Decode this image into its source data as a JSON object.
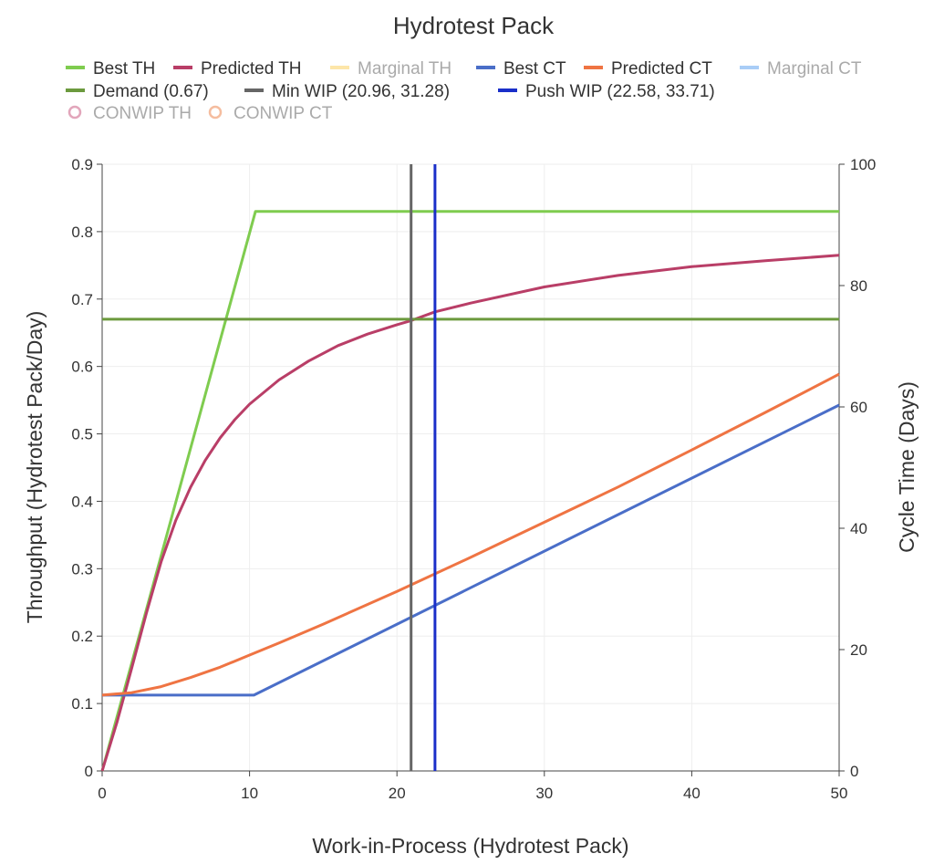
{
  "chart_data": {
    "type": "line",
    "title": "Hydrotest Pack",
    "xlabel": "Work-in-Process (Hydrotest Pack)",
    "ylabel_left": "Throughput (Hydrotest Pack/Day)",
    "ylabel_right": "Cycle Time (Days)",
    "xlim": [
      0,
      50
    ],
    "ylim_left": [
      0,
      0.9
    ],
    "ylim_right": [
      0,
      100
    ],
    "x_ticks": [
      "0",
      "10",
      "20",
      "30",
      "40",
      "50"
    ],
    "y_left_ticks": [
      "0",
      "0.1",
      "0.2",
      "0.3",
      "0.4",
      "0.5",
      "0.6",
      "0.7",
      "0.8",
      "0.9"
    ],
    "y_right_ticks": [
      "0",
      "20",
      "40",
      "60",
      "80",
      "100"
    ],
    "grid": true,
    "legend_position": "top",
    "legend": [
      {
        "label": "Best TH",
        "color": "#7fcc4f",
        "marker": "line",
        "enabled": true
      },
      {
        "label": "Predicted TH",
        "color": "#b93e67",
        "marker": "line",
        "enabled": true
      },
      {
        "label": "Marginal TH",
        "color": "#fde6a9",
        "marker": "line",
        "enabled": false
      },
      {
        "label": "Best CT",
        "color": "#4a6ec8",
        "marker": "line",
        "enabled": true
      },
      {
        "label": "Predicted CT",
        "color": "#ef7443",
        "marker": "line",
        "enabled": true
      },
      {
        "label": "Marginal CT",
        "color": "#a9cdf7",
        "marker": "line",
        "enabled": false
      },
      {
        "label": "Demand (0.67)",
        "color": "#6c9a3e",
        "marker": "line",
        "enabled": true
      },
      {
        "label": "Min WIP (20.96, 31.28)",
        "color": "#666666",
        "marker": "line",
        "enabled": true
      },
      {
        "label": "Push WIP (22.58, 33.71)",
        "color": "#1a2fc9",
        "marker": "line",
        "enabled": true
      },
      {
        "label": "CONWIP TH",
        "color": "#e2a6bb",
        "marker": "circle",
        "enabled": false
      },
      {
        "label": "CONWIP CT",
        "color": "#f5bd9f",
        "marker": "circle",
        "enabled": false
      }
    ],
    "series": [
      {
        "name": "Best TH",
        "axis": "left",
        "color": "#7fcc4f",
        "x": [
          0,
          10.4,
          50
        ],
        "y": [
          0,
          0.83,
          0.83
        ]
      },
      {
        "name": "Predicted TH",
        "axis": "left",
        "color": "#b93e67",
        "x": [
          0,
          1,
          2,
          3,
          4,
          5,
          6,
          7,
          8,
          9,
          10,
          12,
          14,
          16,
          18,
          20,
          20.96,
          22.58,
          25,
          30,
          35,
          40,
          45,
          50
        ],
        "y": [
          0,
          0.072,
          0.152,
          0.234,
          0.31,
          0.372,
          0.421,
          0.461,
          0.494,
          0.521,
          0.544,
          0.58,
          0.608,
          0.631,
          0.648,
          0.662,
          0.668,
          0.681,
          0.694,
          0.718,
          0.735,
          0.748,
          0.757,
          0.765
        ]
      },
      {
        "name": "Best CT",
        "axis": "right",
        "color": "#4a6ec8",
        "x": [
          0,
          10.3,
          50
        ],
        "y": [
          12.5,
          12.5,
          60.3
        ]
      },
      {
        "name": "Predicted CT",
        "axis": "right",
        "color": "#ef7443",
        "x": [
          0,
          2,
          4,
          6,
          8,
          10,
          12,
          15,
          20,
          25,
          30,
          35,
          40,
          45,
          50
        ],
        "y": [
          12.5,
          12.9,
          13.9,
          15.4,
          17.1,
          19.1,
          21.1,
          24.2,
          29.6,
          35.2,
          41.0,
          46.8,
          52.9,
          59.1,
          65.4
        ]
      },
      {
        "name": "Demand (0.67)",
        "axis": "left",
        "color": "#6c9a3e",
        "x": [
          0,
          50
        ],
        "y": [
          0.67,
          0.67
        ]
      },
      {
        "name": "Min WIP (20.96, 31.28)",
        "axis": "vertical",
        "color": "#666666",
        "x": [
          20.96,
          20.96
        ],
        "y": [
          0,
          0.9
        ]
      },
      {
        "name": "Push WIP (22.58, 33.71)",
        "axis": "vertical",
        "color": "#1a2fc9",
        "x": [
          22.58,
          22.58
        ],
        "y": [
          0,
          0.9
        ]
      }
    ]
  }
}
